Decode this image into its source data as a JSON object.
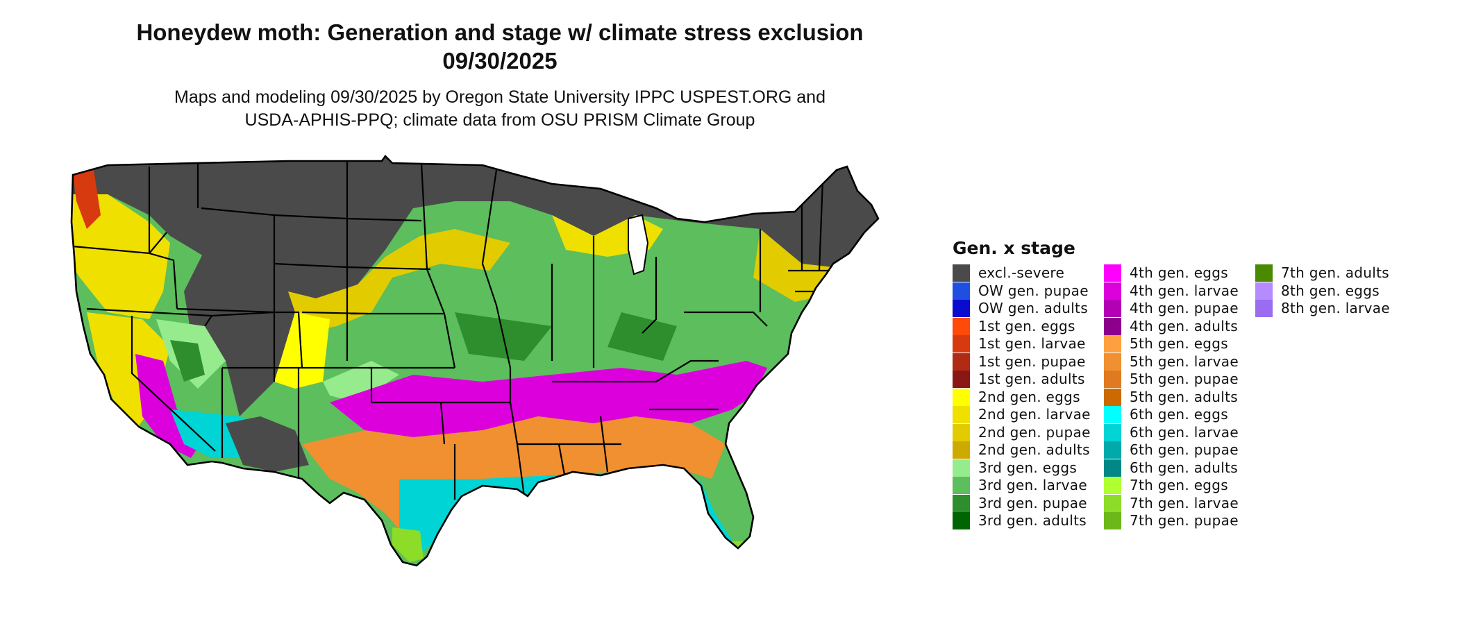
{
  "title": {
    "line1": "Honeydew moth: Generation and stage w/ climate stress exclusion",
    "line2": "09/30/2025"
  },
  "subtitle": {
    "line1": "Maps and modeling 09/30/2025 by Oregon State University IPPC USPEST.ORG and",
    "line2": "USDA-APHIS-PPQ; climate data from OSU PRISM Climate Group"
  },
  "legend": {
    "title": "Gen. x stage",
    "columns": [
      [
        {
          "label": "excl.-severe",
          "color": "#4a4a4a"
        },
        {
          "label": "OW gen. pupae",
          "color": "#1f4fe0"
        },
        {
          "label": "OW gen. adults",
          "color": "#0a0ad0"
        },
        {
          "label": "1st gen. eggs",
          "color": "#ff4a0a"
        },
        {
          "label": "1st gen. larvae",
          "color": "#d83a10"
        },
        {
          "label": "1st gen. pupae",
          "color": "#b02a14"
        },
        {
          "label": "1st gen. adults",
          "color": "#8a1616"
        },
        {
          "label": "2nd gen. eggs",
          "color": "#ffff00"
        },
        {
          "label": "2nd gen. larvae",
          "color": "#f0e000"
        },
        {
          "label": "2nd gen. pupae",
          "color": "#e2cc00"
        },
        {
          "label": "2nd gen. adults",
          "color": "#ccaa00"
        },
        {
          "label": "3rd gen. eggs",
          "color": "#96ec8c"
        },
        {
          "label": "3rd gen. larvae",
          "color": "#5cbe5c"
        },
        {
          "label": "3rd gen. pupae",
          "color": "#2e8e2e"
        },
        {
          "label": "3rd gen. adults",
          "color": "#006400"
        }
      ],
      [
        {
          "label": "4th gen. eggs",
          "color": "#ff00ff"
        },
        {
          "label": "4th gen. larvae",
          "color": "#dc00dc"
        },
        {
          "label": "4th gen. pupae",
          "color": "#b400b4"
        },
        {
          "label": "4th gen. adults",
          "color": "#8c008c"
        },
        {
          "label": "5th gen. eggs",
          "color": "#ffa040"
        },
        {
          "label": "5th gen. larvae",
          "color": "#f09030"
        },
        {
          "label": "5th gen. pupae",
          "color": "#e07a20"
        },
        {
          "label": "5th gen. adults",
          "color": "#cc6a00"
        },
        {
          "label": "6th gen. eggs",
          "color": "#00ffff"
        },
        {
          "label": "6th gen. larvae",
          "color": "#00d4d4"
        },
        {
          "label": "6th gen. pupae",
          "color": "#00aaaa"
        },
        {
          "label": "6th gen. adults",
          "color": "#008888"
        },
        {
          "label": "7th gen. eggs",
          "color": "#b0ff30"
        },
        {
          "label": "7th gen. larvae",
          "color": "#8cdc28"
        },
        {
          "label": "7th gen. pupae",
          "color": "#6cb818"
        }
      ],
      [
        {
          "label": "7th gen. adults",
          "color": "#4a8a00"
        },
        {
          "label": "8th gen. eggs",
          "color": "#b48cff"
        },
        {
          "label": "8th gen. larvae",
          "color": "#9a6cf0"
        }
      ]
    ]
  }
}
